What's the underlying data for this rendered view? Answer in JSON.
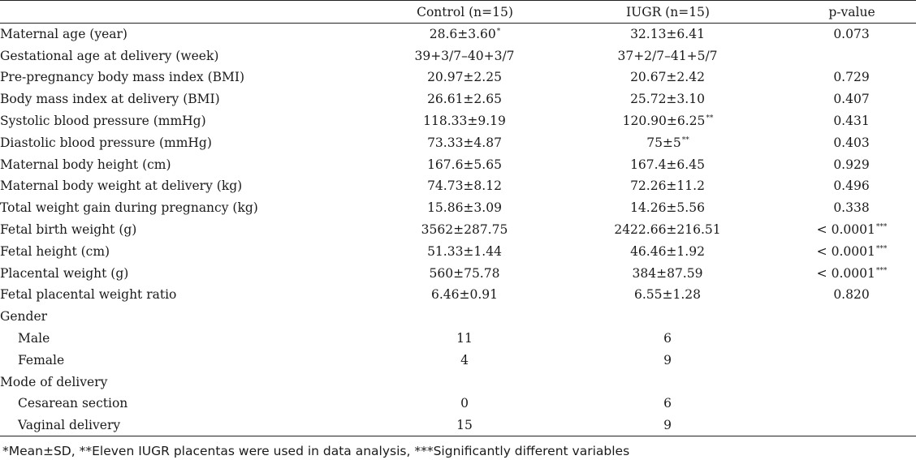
{
  "table": {
    "headers": {
      "label": "",
      "control": "Control (n=15)",
      "iugr": "IUGR (n=15)",
      "p": "p-value"
    },
    "rows": [
      {
        "label": "Maternal age (year)",
        "control": "28.6±3.60",
        "control_mark": "*",
        "iugr": "32.13±6.41",
        "iugr_mark": "",
        "p": "0.073",
        "p_mark": "",
        "indent": false
      },
      {
        "label": "Gestational age at delivery (week)",
        "control": "39+3/7–40+3/7",
        "control_mark": "",
        "iugr": "37+2/7–41+5/7",
        "iugr_mark": "",
        "p": "",
        "p_mark": "",
        "indent": false
      },
      {
        "label": "Pre-pregnancy body mass index (BMI)",
        "control": "20.97±2.25",
        "control_mark": "",
        "iugr": "20.67±2.42",
        "iugr_mark": "",
        "p": "0.729",
        "p_mark": "",
        "indent": false
      },
      {
        "label": "Body mass index at delivery (BMI)",
        "control": "26.61±2.65",
        "control_mark": "",
        "iugr": "25.72±3.10",
        "iugr_mark": "",
        "p": "0.407",
        "p_mark": "",
        "indent": false
      },
      {
        "label": "Systolic blood pressure (mmHg)",
        "control": "118.33±9.19",
        "control_mark": "",
        "iugr": "120.90±6.25",
        "iugr_mark": "**",
        "p": "0.431",
        "p_mark": "",
        "indent": false
      },
      {
        "label": "Diastolic blood pressure (mmHg)",
        "control": "73.33±4.87",
        "control_mark": "",
        "iugr": "75±5",
        "iugr_mark": "**",
        "p": "0.403",
        "p_mark": "",
        "indent": false
      },
      {
        "label": "Maternal body height (cm)",
        "control": "167.6±5.65",
        "control_mark": "",
        "iugr": "167.4±6.45",
        "iugr_mark": "",
        "p": "0.929",
        "p_mark": "",
        "indent": false
      },
      {
        "label": "Maternal body weight at delivery (kg)",
        "control": "74.73±8.12",
        "control_mark": "",
        "iugr": "72.26±11.2",
        "iugr_mark": "",
        "p": "0.496",
        "p_mark": "",
        "indent": false
      },
      {
        "label": "Total weight gain during pregnancy (kg)",
        "control": "15.86±3.09",
        "control_mark": "",
        "iugr": "14.26±5.56",
        "iugr_mark": "",
        "p": "0.338",
        "p_mark": "",
        "indent": false
      },
      {
        "label": "Fetal birth weight (g)",
        "control": "3562±287.75",
        "control_mark": "",
        "iugr": "2422.66±216.51",
        "iugr_mark": "",
        "p": "< 0.0001",
        "p_mark": "***",
        "indent": false
      },
      {
        "label": "Fetal height (cm)",
        "control": "51.33±1.44",
        "control_mark": "",
        "iugr": "46.46±1.92",
        "iugr_mark": "",
        "p": "< 0.0001",
        "p_mark": "***",
        "indent": false
      },
      {
        "label": "Placental weight (g)",
        "control": "560±75.78",
        "control_mark": "",
        "iugr": "384±87.59",
        "iugr_mark": "",
        "p": "< 0.0001",
        "p_mark": "***",
        "indent": false
      },
      {
        "label": "Fetal placental weight ratio",
        "control": "6.46±0.91",
        "control_mark": "",
        "iugr": "6.55±1.28",
        "iugr_mark": "",
        "p": "0.820",
        "p_mark": "",
        "indent": false
      },
      {
        "label": "Gender",
        "control": "",
        "control_mark": "",
        "iugr": "",
        "iugr_mark": "",
        "p": "",
        "p_mark": "",
        "indent": false
      },
      {
        "label": "Male",
        "control": "11",
        "control_mark": "",
        "iugr": "6",
        "iugr_mark": "",
        "p": "",
        "p_mark": "",
        "indent": true
      },
      {
        "label": "Female",
        "control": "4",
        "control_mark": "",
        "iugr": "9",
        "iugr_mark": "",
        "p": "",
        "p_mark": "",
        "indent": true
      },
      {
        "label": "Mode of delivery",
        "control": "",
        "control_mark": "",
        "iugr": "",
        "iugr_mark": "",
        "p": "",
        "p_mark": "",
        "indent": false
      },
      {
        "label": "Cesarean section",
        "control": "0",
        "control_mark": "",
        "iugr": "6",
        "iugr_mark": "",
        "p": "",
        "p_mark": "",
        "indent": true
      },
      {
        "label": "Vaginal delivery",
        "control": "15",
        "control_mark": "",
        "iugr": "9",
        "iugr_mark": "",
        "p": "",
        "p_mark": "",
        "indent": true
      }
    ]
  },
  "footnote": "*Mean±SD, **Eleven IUGR placentas were used in data analysis, ***Significantly different variables"
}
